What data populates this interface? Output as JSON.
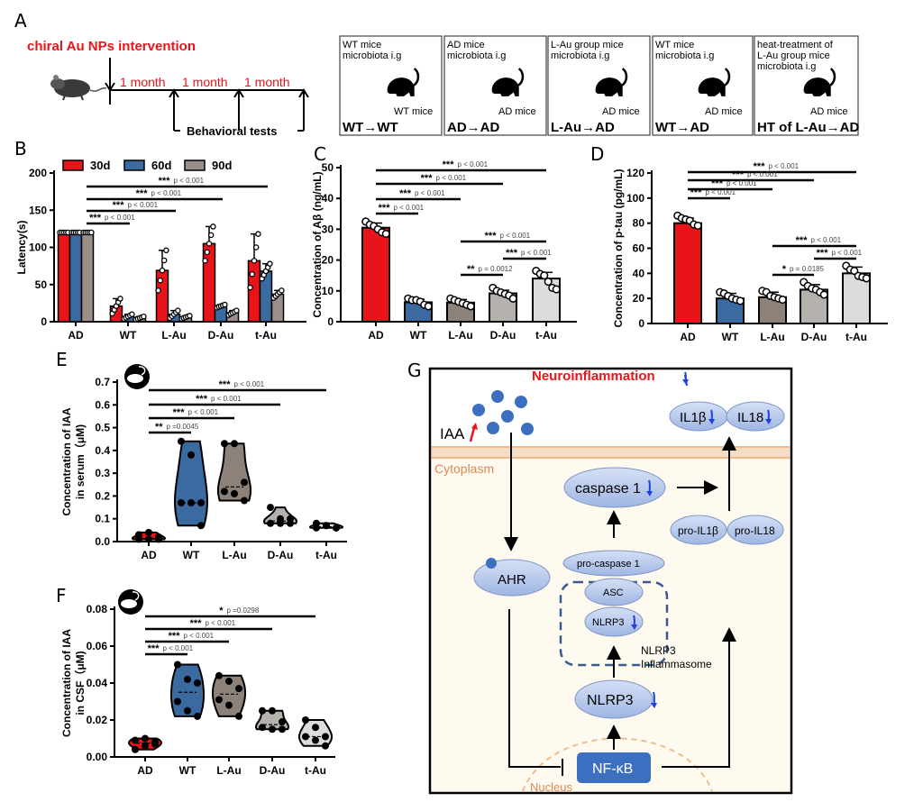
{
  "panel_labels": {
    "a": "A",
    "b": "B",
    "c": "C",
    "d": "D",
    "e": "E",
    "f": "F",
    "g": "G"
  },
  "panel_a": {
    "intervention": "chiral Au NPs intervention",
    "months": [
      "1 month",
      "1 month",
      "1 month"
    ],
    "behavioral": "Behavioral tests",
    "intervention_color": "#e8141a",
    "boxes": [
      {
        "top": [
          "WT mice",
          "microbiota i.g"
        ],
        "mice": "WT mice",
        "label": "WT→WT"
      },
      {
        "top": [
          "AD mice",
          "microbiota i.g"
        ],
        "mice": "AD mice",
        "label": "AD→AD"
      },
      {
        "top": [
          "L-Au group mice",
          "microbiota i.g"
        ],
        "mice": "AD mice",
        "label": "L-Au→AD"
      },
      {
        "top": [
          "WT mice",
          "microbiota i.g"
        ],
        "mice": "AD mice",
        "label": "WT→AD"
      },
      {
        "top": [
          "heat-treatment    of",
          "L-Au  group  mice",
          "microbiota i.g"
        ],
        "mice": "AD mice",
        "label": "HT of L-Au→AD"
      }
    ]
  },
  "chart_data": [
    {
      "id": "B",
      "type": "bar",
      "ylabel": "Latency(s)",
      "ylim": [
        0,
        200
      ],
      "yticks": [
        0,
        50,
        100,
        150,
        200
      ],
      "categories": [
        "AD",
        "WT",
        "L-Au",
        "D-Au",
        "t-Au"
      ],
      "series": [
        {
          "name": "30d",
          "color": "#e8141a",
          "values": [
            120,
            21,
            69,
            105,
            82
          ],
          "sd": [
            0,
            10,
            27,
            23,
            36
          ]
        },
        {
          "name": "60d",
          "color": "#3a6aa0",
          "values": [
            120,
            7,
            10,
            21,
            68
          ],
          "sd": [
            0,
            3,
            5,
            2,
            10
          ]
        },
        {
          "name": "90d",
          "color": "#9a9089",
          "values": [
            120,
            5,
            6,
            12,
            37
          ],
          "sd": [
            0,
            2,
            2,
            3,
            5
          ]
        }
      ],
      "legend": "top",
      "comparisons": [
        {
          "from": "AD",
          "to": "t-Au",
          "stars": "***",
          "p": "p < 0.001"
        },
        {
          "from": "AD",
          "to": "D-Au",
          "stars": "***",
          "p": "p < 0.001"
        },
        {
          "from": "AD",
          "to": "L-Au",
          "stars": "***",
          "p": "p < 0.001"
        },
        {
          "from": "AD",
          "to": "WT",
          "stars": "***",
          "p": "p < 0.001"
        }
      ]
    },
    {
      "id": "C",
      "type": "bar",
      "ylabel": "Concentration of Aβ (ng/mL)",
      "ylim": [
        0,
        50
      ],
      "yticks": [
        0,
        10,
        20,
        30,
        40,
        50
      ],
      "categories": [
        "AD",
        "WT",
        "L-Au",
        "D-Au",
        "t-Au"
      ],
      "colors": [
        "#e8141a",
        "#3a6aa0",
        "#8c8279",
        "#b5b1ad",
        "#dcdcdc"
      ],
      "values": [
        30.5,
        6.3,
        6.2,
        9.2,
        14
      ],
      "sd": [
        1.5,
        1,
        1,
        1,
        2
      ],
      "points": [
        [
          32.5,
          31.5,
          31,
          30,
          29,
          28.5
        ],
        [
          7.5,
          7,
          7,
          6.5,
          5.5,
          5
        ],
        [
          7.5,
          7,
          6.5,
          6,
          5.5,
          5
        ],
        [
          11,
          10,
          9.5,
          9,
          8.5,
          7.5
        ],
        [
          16.5,
          15.5,
          15,
          13,
          11,
          10.5
        ]
      ],
      "comparisons": [
        {
          "from": "AD",
          "to": "t-Au",
          "stars": "***",
          "p": "p < 0.001"
        },
        {
          "from": "AD",
          "to": "D-Au",
          "stars": "***",
          "p": "p < 0.001"
        },
        {
          "from": "AD",
          "to": "L-Au",
          "stars": "***",
          "p": "p < 0.001"
        },
        {
          "from": "AD",
          "to": "WT",
          "stars": "***",
          "p": "p < 0.001"
        },
        {
          "from": "L-Au",
          "to": "t-Au",
          "stars": "***",
          "p": "p < 0.001"
        },
        {
          "from": "D-Au",
          "to": "t-Au",
          "stars": "***",
          "p": "p < 0.001"
        },
        {
          "from": "L-Au",
          "to": "D-Au",
          "stars": "**",
          "p": "p = 0.0012"
        }
      ]
    },
    {
      "id": "D",
      "type": "bar",
      "ylabel": "Concentration of p-tau (pg/mL)",
      "ylim": [
        0,
        120
      ],
      "yticks": [
        0,
        20,
        40,
        60,
        80,
        100,
        120
      ],
      "categories": [
        "AD",
        "WT",
        "L-Au",
        "D-Au",
        "t-Au"
      ],
      "colors": [
        "#e8141a",
        "#3a6aa0",
        "#8c8279",
        "#b5b1ad",
        "#dcdcdc"
      ],
      "values": [
        80,
        20,
        21,
        27,
        40
      ],
      "sd": [
        4,
        4,
        4,
        4,
        5
      ],
      "points": [
        [
          86,
          84,
          83,
          82,
          79,
          78
        ],
        [
          25,
          24,
          22,
          20,
          19,
          18
        ],
        [
          26,
          25,
          22,
          21,
          20,
          19
        ],
        [
          33,
          30,
          28,
          27,
          25,
          23
        ],
        [
          46,
          43,
          42,
          38,
          37,
          36
        ]
      ],
      "comparisons": [
        {
          "from": "AD",
          "to": "t-Au",
          "stars": "***",
          "p": "p < 0.001"
        },
        {
          "from": "AD",
          "to": "D-Au",
          "stars": "***",
          "p": "p < 0.001"
        },
        {
          "from": "AD",
          "to": "L-Au",
          "stars": "***",
          "p": "p < 0.001"
        },
        {
          "from": "AD",
          "to": "WT",
          "stars": "***",
          "p": "p < 0.001"
        },
        {
          "from": "L-Au",
          "to": "t-Au",
          "stars": "***",
          "p": "p < 0.001"
        },
        {
          "from": "D-Au",
          "to": "t-Au",
          "stars": "***",
          "p": "p < 0.001"
        },
        {
          "from": "L-Au",
          "to": "D-Au",
          "stars": "*",
          "p": "p = 0.0185"
        }
      ]
    },
    {
      "id": "E",
      "type": "violin",
      "ylabel": [
        "Concentration of IAA",
        "in serum（μM)"
      ],
      "ylim": [
        0,
        0.7
      ],
      "yticks": [
        "0.0",
        "0.1",
        "0.2",
        "0.3",
        "0.4",
        "0.5",
        "0.6",
        "0.7"
      ],
      "categories": [
        "AD",
        "WT",
        "L-Au",
        "D-Au",
        "t-Au"
      ],
      "colors": [
        "#e8141a",
        "#3a6aa0",
        "#8c8279",
        "#b5b1ad",
        "#dcdcdc"
      ],
      "points": [
        [
          0.01,
          0.01,
          0.02,
          0.03,
          0.04,
          0.01
        ],
        [
          0.44,
          0.38,
          0.17,
          0.17,
          0.17,
          0.07
        ],
        [
          0.43,
          0.43,
          0.26,
          0.22,
          0.21,
          0.18
        ],
        [
          0.15,
          0.1,
          0.08,
          0.08,
          0.08,
          0.1
        ],
        [
          0.08,
          0.07,
          0.06,
          0.06,
          0.07,
          0.06
        ]
      ],
      "icon": "mouse-serum-icon",
      "comparisons": [
        {
          "from": "AD",
          "to": "t-Au",
          "stars": "***",
          "p": "p < 0.001"
        },
        {
          "from": "AD",
          "to": "D-Au",
          "stars": "***",
          "p": "p < 0.001"
        },
        {
          "from": "AD",
          "to": "L-Au",
          "stars": "***",
          "p": "p < 0.001"
        },
        {
          "from": "AD",
          "to": "WT",
          "stars": "**",
          "p": "p =0.0045"
        }
      ]
    },
    {
      "id": "F",
      "type": "violin",
      "ylabel": [
        "Concentration of IAA",
        "in CSF（μM)"
      ],
      "ylim": [
        0,
        0.08
      ],
      "yticks": [
        "0.00",
        "0.02",
        "0.04",
        "0.06",
        "0.08"
      ],
      "categories": [
        "AD",
        "WT",
        "L-Au",
        "D-Au",
        "t-Au"
      ],
      "colors": [
        "#e8141a",
        "#3a6aa0",
        "#8c8279",
        "#b5b1ad",
        "#dcdcdc"
      ],
      "points": [
        [
          0.004,
          0.006,
          0.008,
          0.009,
          0.01,
          0.007
        ],
        [
          0.05,
          0.042,
          0.04,
          0.03,
          0.025,
          0.022
        ],
        [
          0.044,
          0.041,
          0.037,
          0.031,
          0.028,
          0.022
        ],
        [
          0.025,
          0.025,
          0.019,
          0.016,
          0.015,
          0.015
        ],
        [
          0.02,
          0.016,
          0.011,
          0.011,
          0.009,
          0.006
        ]
      ],
      "icon": "mouse-csf-icon",
      "comparisons": [
        {
          "from": "AD",
          "to": "t-Au",
          "stars": "*",
          "p": "p =0.0298"
        },
        {
          "from": "AD",
          "to": "D-Au",
          "stars": "***",
          "p": "p < 0.001"
        },
        {
          "from": "AD",
          "to": "L-Au",
          "stars": "***",
          "p": "p < 0.001"
        },
        {
          "from": "AD",
          "to": "WT",
          "stars": "***",
          "p": "p < 0.001"
        }
      ]
    }
  ],
  "panel_g": {
    "title": "Neuroinflammation",
    "iaa": "IAA",
    "cytoplasm": "Cytoplasm",
    "nucleus": "Nucleus",
    "il1b": "IL1β",
    "il18": "IL18",
    "caspase1": "caspase 1",
    "pro_il1b": "pro-IL1β",
    "pro_il18": "pro-IL18",
    "ahr": "AHR",
    "pro_caspase1": "pro-caspase 1",
    "asc": "ASC",
    "nlrp3_small": "NLRP3",
    "inflammasome": [
      "NLRP3",
      "Inflammasome"
    ],
    "nlrp3": "NLRP3",
    "nfkb": "NF-κB",
    "colors": {
      "title": "#e8141a",
      "node": "#b4c6ea",
      "nfkb": "#3d6fc0",
      "membrane": "#f2c7a5",
      "cytoplasm_bg": "#fffaf0",
      "down_arrow": "#1f3fe0",
      "up_arrow": "#e8141a"
    }
  }
}
